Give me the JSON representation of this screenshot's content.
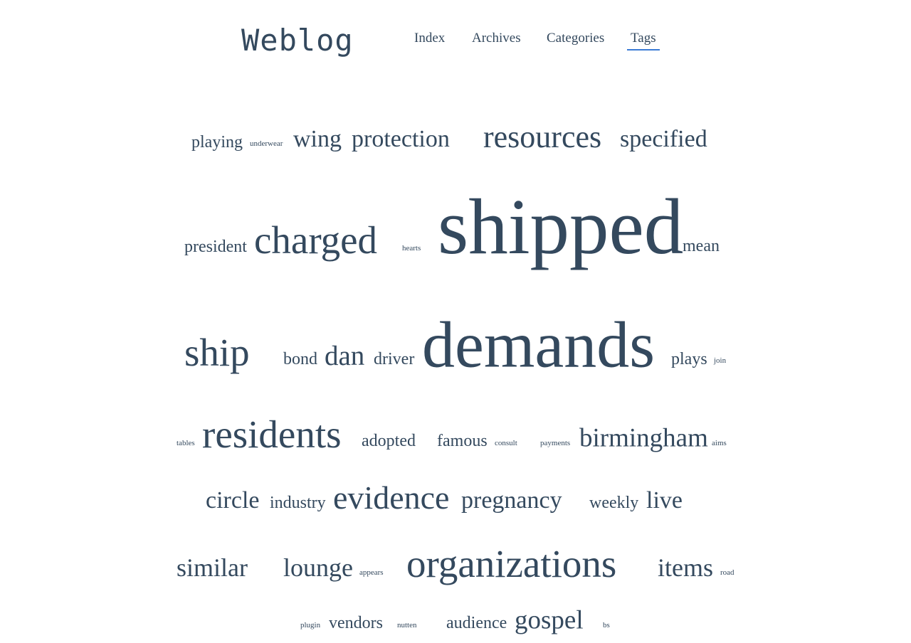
{
  "header": {
    "site_title": "Weblog",
    "nav": [
      {
        "label": "Index"
      },
      {
        "label": "Archives"
      },
      {
        "label": "Categories"
      },
      {
        "label": "Tags",
        "active": true
      }
    ],
    "active_underline_color": "#3a7bd5"
  },
  "colors": {
    "text": "#34495e",
    "background": "#ffffff"
  },
  "tag_cloud": [
    {
      "label": "playing"
    },
    {
      "label": "underwear"
    },
    {
      "label": "wing"
    },
    {
      "label": "protection"
    },
    {
      "label": "resources"
    },
    {
      "label": "specified"
    },
    {
      "label": "president"
    },
    {
      "label": "charged"
    },
    {
      "label": "hearts"
    },
    {
      "label": "shipped"
    },
    {
      "label": "mean"
    },
    {
      "label": "ship"
    },
    {
      "label": "bond"
    },
    {
      "label": "dan"
    },
    {
      "label": "driver"
    },
    {
      "label": "demands"
    },
    {
      "label": "plays"
    },
    {
      "label": "join"
    },
    {
      "label": "tables"
    },
    {
      "label": "residents"
    },
    {
      "label": "adopted"
    },
    {
      "label": "famous"
    },
    {
      "label": "consult"
    },
    {
      "label": "payments"
    },
    {
      "label": "birmingham"
    },
    {
      "label": "aims"
    },
    {
      "label": "circle"
    },
    {
      "label": "industry"
    },
    {
      "label": "evidence"
    },
    {
      "label": "pregnancy"
    },
    {
      "label": "weekly"
    },
    {
      "label": "live"
    },
    {
      "label": "similar"
    },
    {
      "label": "lounge"
    },
    {
      "label": "appears"
    },
    {
      "label": "organizations"
    },
    {
      "label": "items"
    },
    {
      "label": "road"
    },
    {
      "label": "plugin"
    },
    {
      "label": "vendors"
    },
    {
      "label": "nutten"
    },
    {
      "label": "audience"
    },
    {
      "label": "gospel"
    },
    {
      "label": "bs"
    }
  ]
}
